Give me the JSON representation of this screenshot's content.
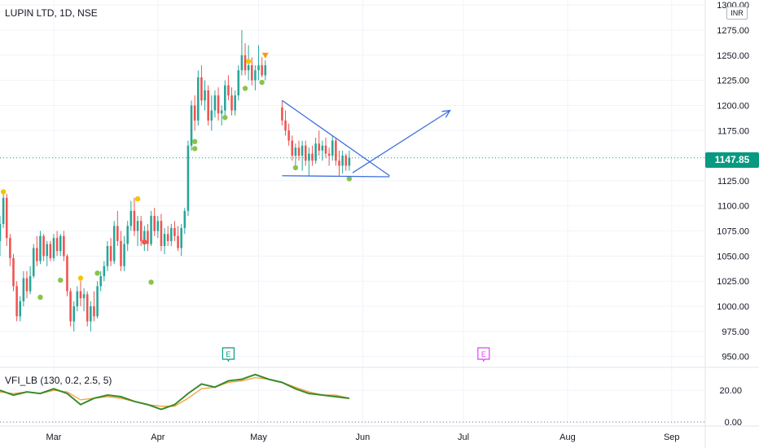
{
  "header": {
    "symbol_title": "LUPIN LTD, 1D, NSE"
  },
  "currency_badge": "INR",
  "current_price_label": "1147.85",
  "indicator": {
    "label": "VFI_LB (130, 0.2, 2.5, 5)"
  },
  "colors": {
    "up": "#26a69a",
    "down": "#ef5350",
    "trendline": "#3d6fe0",
    "vfi": "#3a8a2a",
    "vfi_signal": "#f2a03d",
    "earnings_past": "#089981",
    "earnings_future": "#e040fb",
    "dot_yellow": "#f5c400",
    "dot_green": "#8bc34a",
    "dot_red": "#ef5350",
    "dot_orange": "#ff9800"
  },
  "chart_data": {
    "type": "candlestick",
    "title": "LUPIN LTD, 1D, NSE",
    "y_axis": {
      "range": [
        940,
        1305
      ],
      "ticks": [
        950,
        975,
        1000,
        1025,
        1050,
        1075,
        1100,
        1125,
        1150,
        1175,
        1200,
        1225,
        1250,
        1275,
        1300
      ],
      "tick_labels": [
        "950.00",
        "975.00",
        "1000.00",
        "1025.00",
        "1050.00",
        "1075.00",
        "1100.00",
        "1125.00",
        "1150.00",
        "1175.00",
        "1200.00",
        "1225.00",
        "1250.00",
        "1275.00",
        "1300.00"
      ],
      "currency": "INR"
    },
    "x_axis": {
      "labels": [
        "Mar",
        "Apr",
        "May",
        "Jun",
        "Jul",
        "Aug",
        "Sep"
      ],
      "label_days": [
        28,
        59,
        89,
        120,
        150,
        181,
        212
      ],
      "visible_day_range": [
        12,
        222
      ]
    },
    "current_price": 1147.85,
    "candles": [
      {
        "d": 12,
        "o": 1065,
        "h": 1090,
        "l": 1050,
        "c": 1082
      },
      {
        "d": 13,
        "o": 1082,
        "h": 1112,
        "l": 1078,
        "c": 1108
      },
      {
        "d": 14,
        "o": 1108,
        "h": 1112,
        "l": 1060,
        "c": 1068
      },
      {
        "d": 15,
        "o": 1068,
        "h": 1072,
        "l": 1040,
        "c": 1048
      },
      {
        "d": 16,
        "o": 1048,
        "h": 1052,
        "l": 1015,
        "c": 1020
      },
      {
        "d": 17,
        "o": 1020,
        "h": 1025,
        "l": 985,
        "c": 990
      },
      {
        "d": 18,
        "o": 990,
        "h": 1010,
        "l": 985,
        "c": 1005
      },
      {
        "d": 19,
        "o": 1005,
        "h": 1035,
        "l": 1000,
        "c": 1028
      },
      {
        "d": 20,
        "o": 1028,
        "h": 1035,
        "l": 1008,
        "c": 1015
      },
      {
        "d": 21,
        "o": 1015,
        "h": 1040,
        "l": 1012,
        "c": 1030
      },
      {
        "d": 22,
        "o": 1030,
        "h": 1062,
        "l": 1028,
        "c": 1058
      },
      {
        "d": 23,
        "o": 1058,
        "h": 1070,
        "l": 1040,
        "c": 1045
      },
      {
        "d": 24,
        "o": 1045,
        "h": 1075,
        "l": 1042,
        "c": 1070
      },
      {
        "d": 25,
        "o": 1070,
        "h": 1072,
        "l": 1045,
        "c": 1050
      },
      {
        "d": 26,
        "o": 1050,
        "h": 1065,
        "l": 1040,
        "c": 1062
      },
      {
        "d": 27,
        "o": 1062,
        "h": 1065,
        "l": 1045,
        "c": 1048
      },
      {
        "d": 28,
        "o": 1048,
        "h": 1072,
        "l": 1045,
        "c": 1068
      },
      {
        "d": 29,
        "o": 1068,
        "h": 1075,
        "l": 1050,
        "c": 1055
      },
      {
        "d": 30,
        "o": 1055,
        "h": 1072,
        "l": 1050,
        "c": 1070
      },
      {
        "d": 31,
        "o": 1070,
        "h": 1075,
        "l": 1045,
        "c": 1050
      },
      {
        "d": 32,
        "o": 1050,
        "h": 1052,
        "l": 1010,
        "c": 1015
      },
      {
        "d": 33,
        "o": 1015,
        "h": 1018,
        "l": 980,
        "c": 985
      },
      {
        "d": 34,
        "o": 985,
        "h": 1005,
        "l": 975,
        "c": 1000
      },
      {
        "d": 35,
        "o": 1000,
        "h": 1020,
        "l": 995,
        "c": 1015
      },
      {
        "d": 36,
        "o": 1015,
        "h": 1025,
        "l": 1000,
        "c": 1008
      },
      {
        "d": 37,
        "o": 1008,
        "h": 1018,
        "l": 995,
        "c": 1012
      },
      {
        "d": 38,
        "o": 1012,
        "h": 1015,
        "l": 980,
        "c": 985
      },
      {
        "d": 39,
        "o": 985,
        "h": 1005,
        "l": 975,
        "c": 1000
      },
      {
        "d": 40,
        "o": 1000,
        "h": 1015,
        "l": 985,
        "c": 990
      },
      {
        "d": 41,
        "o": 990,
        "h": 1025,
        "l": 988,
        "c": 1020
      },
      {
        "d": 42,
        "o": 1020,
        "h": 1035,
        "l": 1015,
        "c": 1030
      },
      {
        "d": 43,
        "o": 1030,
        "h": 1045,
        "l": 1025,
        "c": 1040
      },
      {
        "d": 44,
        "o": 1040,
        "h": 1065,
        "l": 1035,
        "c": 1060
      },
      {
        "d": 45,
        "o": 1060,
        "h": 1068,
        "l": 1040,
        "c": 1045
      },
      {
        "d": 46,
        "o": 1045,
        "h": 1085,
        "l": 1042,
        "c": 1080
      },
      {
        "d": 47,
        "o": 1080,
        "h": 1095,
        "l": 1060,
        "c": 1065
      },
      {
        "d": 48,
        "o": 1065,
        "h": 1075,
        "l": 1035,
        "c": 1040
      },
      {
        "d": 49,
        "o": 1040,
        "h": 1070,
        "l": 1035,
        "c": 1062
      },
      {
        "d": 50,
        "o": 1062,
        "h": 1085,
        "l": 1055,
        "c": 1080
      },
      {
        "d": 51,
        "o": 1080,
        "h": 1105,
        "l": 1075,
        "c": 1095
      },
      {
        "d": 52,
        "o": 1095,
        "h": 1108,
        "l": 1070,
        "c": 1075
      },
      {
        "d": 53,
        "o": 1075,
        "h": 1090,
        "l": 1060,
        "c": 1085
      },
      {
        "d": 54,
        "o": 1085,
        "h": 1090,
        "l": 1060,
        "c": 1065
      },
      {
        "d": 55,
        "o": 1065,
        "h": 1080,
        "l": 1055,
        "c": 1075
      },
      {
        "d": 56,
        "o": 1075,
        "h": 1082,
        "l": 1055,
        "c": 1062
      },
      {
        "d": 57,
        "o": 1062,
        "h": 1095,
        "l": 1060,
        "c": 1090
      },
      {
        "d": 58,
        "o": 1090,
        "h": 1098,
        "l": 1070,
        "c": 1075
      },
      {
        "d": 59,
        "o": 1075,
        "h": 1090,
        "l": 1068,
        "c": 1085
      },
      {
        "d": 60,
        "o": 1085,
        "h": 1092,
        "l": 1055,
        "c": 1060
      },
      {
        "d": 61,
        "o": 1060,
        "h": 1078,
        "l": 1052,
        "c": 1072
      },
      {
        "d": 62,
        "o": 1072,
        "h": 1080,
        "l": 1060,
        "c": 1065
      },
      {
        "d": 63,
        "o": 1065,
        "h": 1082,
        "l": 1060,
        "c": 1078
      },
      {
        "d": 64,
        "o": 1078,
        "h": 1085,
        "l": 1065,
        "c": 1070
      },
      {
        "d": 65,
        "o": 1070,
        "h": 1080,
        "l": 1055,
        "c": 1058
      },
      {
        "d": 66,
        "o": 1058,
        "h": 1082,
        "l": 1050,
        "c": 1078
      },
      {
        "d": 67,
        "o": 1078,
        "h": 1098,
        "l": 1072,
        "c": 1095
      },
      {
        "d": 68,
        "o": 1095,
        "h": 1165,
        "l": 1090,
        "c": 1160
      },
      {
        "d": 69,
        "o": 1160,
        "h": 1205,
        "l": 1155,
        "c": 1200
      },
      {
        "d": 70,
        "o": 1200,
        "h": 1210,
        "l": 1175,
        "c": 1185
      },
      {
        "d": 71,
        "o": 1185,
        "h": 1235,
        "l": 1180,
        "c": 1228
      },
      {
        "d": 72,
        "o": 1228,
        "h": 1240,
        "l": 1200,
        "c": 1205
      },
      {
        "d": 73,
        "o": 1205,
        "h": 1225,
        "l": 1195,
        "c": 1215
      },
      {
        "d": 74,
        "o": 1215,
        "h": 1220,
        "l": 1180,
        "c": 1185
      },
      {
        "d": 75,
        "o": 1185,
        "h": 1210,
        "l": 1175,
        "c": 1195
      },
      {
        "d": 76,
        "o": 1195,
        "h": 1215,
        "l": 1188,
        "c": 1210
      },
      {
        "d": 77,
        "o": 1210,
        "h": 1218,
        "l": 1185,
        "c": 1192
      },
      {
        "d": 78,
        "o": 1192,
        "h": 1200,
        "l": 1180,
        "c": 1195
      },
      {
        "d": 79,
        "o": 1195,
        "h": 1225,
        "l": 1190,
        "c": 1220
      },
      {
        "d": 80,
        "o": 1220,
        "h": 1230,
        "l": 1205,
        "c": 1210
      },
      {
        "d": 81,
        "o": 1210,
        "h": 1218,
        "l": 1190,
        "c": 1195
      },
      {
        "d": 82,
        "o": 1195,
        "h": 1215,
        "l": 1190,
        "c": 1210
      },
      {
        "d": 83,
        "o": 1210,
        "h": 1240,
        "l": 1205,
        "c": 1235
      },
      {
        "d": 84,
        "o": 1235,
        "h": 1275,
        "l": 1230,
        "c": 1250
      },
      {
        "d": 85,
        "o": 1250,
        "h": 1262,
        "l": 1230,
        "c": 1235
      },
      {
        "d": 86,
        "o": 1235,
        "h": 1260,
        "l": 1225,
        "c": 1240
      },
      {
        "d": 87,
        "o": 1240,
        "h": 1248,
        "l": 1220,
        "c": 1225
      },
      {
        "d": 88,
        "o": 1225,
        "h": 1240,
        "l": 1215,
        "c": 1235
      },
      {
        "d": 89,
        "o": 1235,
        "h": 1260,
        "l": 1225,
        "c": 1240
      },
      {
        "d": 90,
        "o": 1240,
        "h": 1248,
        "l": 1228,
        "c": 1230
      },
      {
        "d": 91,
        "o": 1230,
        "h": 1245,
        "l": 1225,
        "c": 1240
      },
      {
        "d": 96,
        "o": 1198,
        "h": 1205,
        "l": 1180,
        "c": 1185
      },
      {
        "d": 97,
        "o": 1185,
        "h": 1195,
        "l": 1170,
        "c": 1175
      },
      {
        "d": 98,
        "o": 1175,
        "h": 1182,
        "l": 1160,
        "c": 1165
      },
      {
        "d": 99,
        "o": 1165,
        "h": 1170,
        "l": 1145,
        "c": 1150
      },
      {
        "d": 100,
        "o": 1150,
        "h": 1162,
        "l": 1138,
        "c": 1158
      },
      {
        "d": 101,
        "o": 1158,
        "h": 1165,
        "l": 1145,
        "c": 1150
      },
      {
        "d": 102,
        "o": 1150,
        "h": 1165,
        "l": 1135,
        "c": 1160
      },
      {
        "d": 103,
        "o": 1160,
        "h": 1165,
        "l": 1140,
        "c": 1145
      },
      {
        "d": 104,
        "o": 1145,
        "h": 1158,
        "l": 1130,
        "c": 1152
      },
      {
        "d": 105,
        "o": 1152,
        "h": 1160,
        "l": 1140,
        "c": 1145
      },
      {
        "d": 106,
        "o": 1145,
        "h": 1168,
        "l": 1142,
        "c": 1162
      },
      {
        "d": 107,
        "o": 1162,
        "h": 1175,
        "l": 1150,
        "c": 1155
      },
      {
        "d": 108,
        "o": 1155,
        "h": 1165,
        "l": 1145,
        "c": 1160
      },
      {
        "d": 109,
        "o": 1160,
        "h": 1168,
        "l": 1148,
        "c": 1152
      },
      {
        "d": 110,
        "o": 1152,
        "h": 1158,
        "l": 1140,
        "c": 1150
      },
      {
        "d": 111,
        "o": 1150,
        "h": 1170,
        "l": 1145,
        "c": 1165
      },
      {
        "d": 112,
        "o": 1165,
        "h": 1168,
        "l": 1140,
        "c": 1145
      },
      {
        "d": 113,
        "o": 1145,
        "h": 1155,
        "l": 1130,
        "c": 1140
      },
      {
        "d": 114,
        "o": 1140,
        "h": 1155,
        "l": 1132,
        "c": 1150
      },
      {
        "d": 115,
        "o": 1150,
        "h": 1152,
        "l": 1135,
        "c": 1140
      },
      {
        "d": 116,
        "o": 1140,
        "h": 1155,
        "l": 1135,
        "c": 1148
      }
    ],
    "signal_dots": [
      {
        "d": 13,
        "v": 1114,
        "color": "yellow"
      },
      {
        "d": 24,
        "v": 1009,
        "color": "green"
      },
      {
        "d": 30,
        "v": 1026,
        "color": "green"
      },
      {
        "d": 36,
        "v": 1028,
        "color": "yellow"
      },
      {
        "d": 41,
        "v": 1033,
        "color": "green"
      },
      {
        "d": 53,
        "v": 1107,
        "color": "yellow"
      },
      {
        "d": 55,
        "v": 1064,
        "color": "red"
      },
      {
        "d": 57,
        "v": 1024,
        "color": "green"
      },
      {
        "d": 70,
        "v": 1164,
        "color": "green"
      },
      {
        "d": 70,
        "v": 1157,
        "color": "green"
      },
      {
        "d": 79,
        "v": 1188,
        "color": "green"
      },
      {
        "d": 85,
        "v": 1217,
        "color": "green"
      },
      {
        "d": 86,
        "v": 1244,
        "color": "yellow"
      },
      {
        "d": 90,
        "v": 1223,
        "color": "green"
      },
      {
        "d": 91,
        "v": 1250,
        "color": "orange",
        "shape": "triangle-down"
      },
      {
        "d": 100,
        "v": 1138,
        "color": "green"
      },
      {
        "d": 116,
        "v": 1127,
        "color": "green"
      }
    ],
    "drawings": [
      {
        "type": "trendline",
        "from": {
          "d": 96,
          "v": 1205
        },
        "to": {
          "d": 128,
          "v": 1130
        }
      },
      {
        "type": "trendline",
        "from": {
          "d": 96,
          "v": 1130
        },
        "to": {
          "d": 128,
          "v": 1129
        }
      },
      {
        "type": "arrow",
        "from": {
          "d": 117,
          "v": 1133
        },
        "to": {
          "d": 146,
          "v": 1195
        }
      }
    ],
    "earnings_markers": [
      {
        "d": 80,
        "label": "E",
        "status": "past"
      },
      {
        "d": 156,
        "label": "E",
        "status": "future"
      }
    ],
    "indicator": {
      "name": "VFI_LB (130, 0.2, 2.5, 5)",
      "y_range": [
        -2,
        34
      ],
      "ticks": [
        0,
        20
      ],
      "tick_labels": [
        "0.00",
        "20.00"
      ],
      "series": [
        {
          "d": 12,
          "vfi": 20,
          "signal": 19
        },
        {
          "d": 16,
          "vfi": 17,
          "signal": 18
        },
        {
          "d": 20,
          "vfi": 19,
          "signal": 19
        },
        {
          "d": 24,
          "vfi": 18,
          "signal": 18
        },
        {
          "d": 28,
          "vfi": 21,
          "signal": 20
        },
        {
          "d": 32,
          "vfi": 18,
          "signal": 19
        },
        {
          "d": 36,
          "vfi": 11,
          "signal": 14
        },
        {
          "d": 40,
          "vfi": 15,
          "signal": 15
        },
        {
          "d": 44,
          "vfi": 17,
          "signal": 16
        },
        {
          "d": 48,
          "vfi": 16,
          "signal": 15
        },
        {
          "d": 52,
          "vfi": 13,
          "signal": 13
        },
        {
          "d": 56,
          "vfi": 11,
          "signal": 11
        },
        {
          "d": 60,
          "vfi": 8,
          "signal": 10
        },
        {
          "d": 64,
          "vfi": 11,
          "signal": 10
        },
        {
          "d": 68,
          "vfi": 18,
          "signal": 15
        },
        {
          "d": 72,
          "vfi": 24,
          "signal": 21
        },
        {
          "d": 76,
          "vfi": 22,
          "signal": 22
        },
        {
          "d": 80,
          "vfi": 26,
          "signal": 25
        },
        {
          "d": 84,
          "vfi": 27,
          "signal": 26
        },
        {
          "d": 88,
          "vfi": 30,
          "signal": 28
        },
        {
          "d": 92,
          "vfi": 27,
          "signal": 27
        },
        {
          "d": 96,
          "vfi": 25,
          "signal": 25
        },
        {
          "d": 100,
          "vfi": 21,
          "signal": 22
        },
        {
          "d": 104,
          "vfi": 18,
          "signal": 19
        },
        {
          "d": 108,
          "vfi": 17,
          "signal": 17
        },
        {
          "d": 112,
          "vfi": 16,
          "signal": 17
        },
        {
          "d": 116,
          "vfi": 15,
          "signal": 15
        }
      ]
    }
  }
}
